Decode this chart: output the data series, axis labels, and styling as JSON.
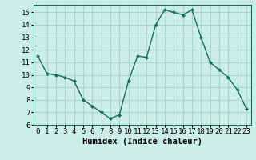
{
  "x": [
    0,
    1,
    2,
    3,
    4,
    5,
    6,
    7,
    8,
    9,
    10,
    11,
    12,
    13,
    14,
    15,
    16,
    17,
    18,
    19,
    20,
    21,
    22,
    23
  ],
  "y": [
    11.5,
    10.1,
    10.0,
    9.8,
    9.5,
    8.0,
    7.5,
    7.0,
    6.5,
    6.8,
    9.5,
    11.5,
    11.4,
    14.0,
    15.2,
    15.0,
    14.8,
    15.2,
    13.0,
    11.0,
    10.4,
    9.8,
    8.8,
    7.3
  ],
  "line_color": "#1a6b5a",
  "marker": "D",
  "marker_size": 2,
  "bg_color": "#cceee8",
  "grid_color": "#aad4ce",
  "xlabel": "Humidex (Indice chaleur)",
  "ylabel": "",
  "xlim": [
    -0.5,
    23.5
  ],
  "ylim": [
    6,
    15.6
  ],
  "yticks": [
    6,
    7,
    8,
    9,
    10,
    11,
    12,
    13,
    14,
    15
  ],
  "xlabel_fontsize": 7.5,
  "tick_fontsize": 6.5,
  "linewidth": 1.0
}
